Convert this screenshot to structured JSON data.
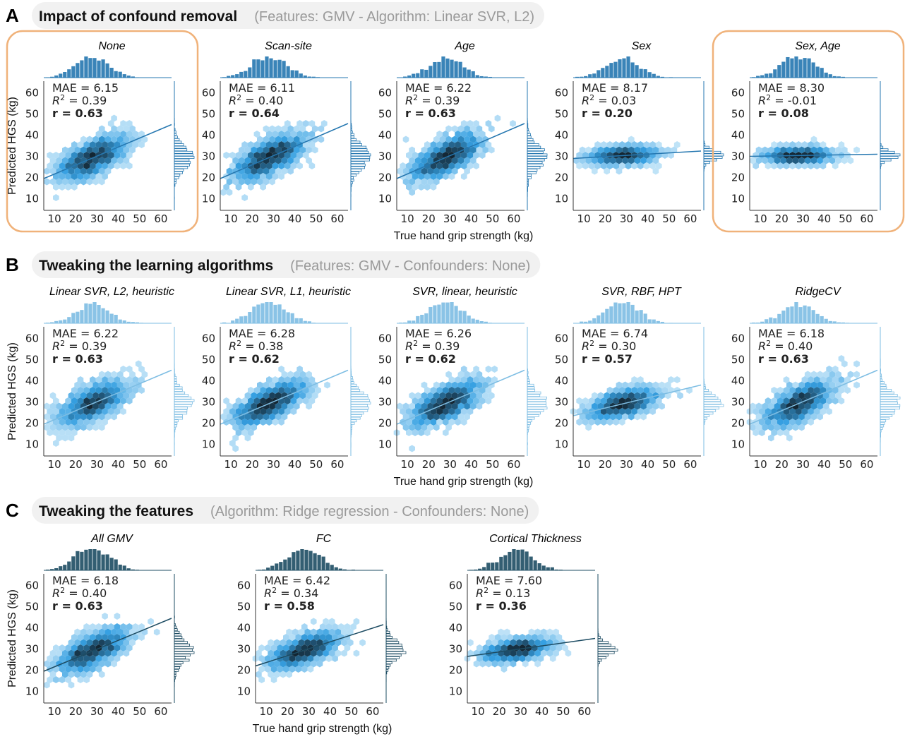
{
  "axes": {
    "xlim": [
      5,
      65
    ],
    "ylim": [
      4.5,
      65.5
    ],
    "xticks": [
      10,
      20,
      30,
      40,
      50,
      60
    ],
    "yticks": [
      10,
      20,
      30,
      40,
      50,
      60
    ],
    "fit_x": [
      5,
      65
    ]
  },
  "sections": [
    {
      "letter": "A",
      "title": "Impact of confound removal",
      "subtitle": "(Features: GMV - Algorithm: Linear SVR, L2)",
      "x_label": "True hand grip strength (kg)",
      "y_label": "Predicted HGS (kg)",
      "color": "#2577b0",
      "panels": [
        {
          "title": "None",
          "mae": "MAE = 6.15",
          "r2": {
            "symbol": "R",
            "power": "2",
            "text": " = 0.39"
          },
          "r": "r = 0.63",
          "fit_y": [
            19.5,
            45
          ],
          "highlight": true
        },
        {
          "title": "Scan-site",
          "mae": "MAE = 6.11",
          "r2": {
            "symbol": "R",
            "power": "2",
            "text": " = 0.40"
          },
          "r": "r = 0.64",
          "fit_y": [
            19.5,
            45.5
          ],
          "highlight": false
        },
        {
          "title": "Age",
          "mae": "MAE = 6.22",
          "r2": {
            "symbol": "R",
            "power": "2",
            "text": " = 0.39"
          },
          "r": "r = 0.63",
          "fit_y": [
            19.5,
            45.5
          ],
          "highlight": false
        },
        {
          "title": "Sex",
          "mae": "MAE = 8.17",
          "r2": {
            "symbol": "R",
            "power": "2",
            "text": " = 0.03"
          },
          "r": "r = 0.20",
          "fit_y": [
            29,
            32.5
          ],
          "highlight": false
        },
        {
          "title": "Sex, Age",
          "mae": "MAE = 8.30",
          "r2": {
            "symbol": "R",
            "power": "2",
            "text": " = -0.01"
          },
          "r": "r = 0.08",
          "fit_y": [
            30,
            31
          ],
          "highlight": true
        }
      ]
    },
    {
      "letter": "B",
      "title": "Tweaking the learning algorithms",
      "subtitle": "(Features: GMV - Confounders: None)",
      "x_label": "True hand grip strength (kg)",
      "y_label": "Predicted HGS (kg)",
      "color": "#7dbde3",
      "panels": [
        {
          "title": "Linear SVR, L2, heuristic",
          "mae": "MAE = 6.22",
          "r2": {
            "symbol": "R",
            "power": "2",
            "text": " = 0.39"
          },
          "r": "r = 0.63",
          "fit_y": [
            19.5,
            45
          ],
          "highlight": false
        },
        {
          "title": "Linear SVR, L1, heuristic",
          "mae": "MAE = 6.28",
          "r2": {
            "symbol": "R",
            "power": "2",
            "text": " = 0.38"
          },
          "r": "r = 0.62",
          "fit_y": [
            19.5,
            45
          ],
          "highlight": false
        },
        {
          "title": "SVR, linear, heuristic",
          "mae": "MAE = 6.26",
          "r2": {
            "symbol": "R",
            "power": "2",
            "text": " = 0.39"
          },
          "r": "r = 0.62",
          "fit_y": [
            19.5,
            45
          ],
          "highlight": false
        },
        {
          "title": "SVR, RBF, HPT",
          "mae": "MAE = 6.74",
          "r2": {
            "symbol": "R",
            "power": "2",
            "text": " = 0.30"
          },
          "r": "r = 0.57",
          "fit_y": [
            23.5,
            38
          ],
          "highlight": false
        },
        {
          "title": "RidgeCV",
          "mae": "MAE = 6.18",
          "r2": {
            "symbol": "R",
            "power": "2",
            "text": " = 0.40"
          },
          "r": "r = 0.63",
          "fit_y": [
            19.5,
            45
          ],
          "highlight": false
        }
      ]
    },
    {
      "letter": "C",
      "title": "Tweaking the features",
      "subtitle": "(Algorithm: Ridge regression - Confounders: None)",
      "x_label": "True hand grip strength (kg)",
      "y_label": "Predicted HGS (kg)",
      "color": "#1d4c63",
      "panels": [
        {
          "title": "All GMV",
          "mae": "MAE = 6.18",
          "r2": {
            "symbol": "R",
            "power": "2",
            "text": " = 0.40"
          },
          "r": "r = 0.63",
          "fit_y": [
            19.5,
            44.5
          ],
          "highlight": false
        },
        {
          "title": "FC",
          "mae": "MAE = 6.42",
          "r2": {
            "symbol": "R",
            "power": "2",
            "text": " = 0.34"
          },
          "r": "r = 0.58",
          "fit_y": [
            22,
            41.5
          ],
          "highlight": false
        },
        {
          "title": "Cortical Thickness",
          "mae": "MAE = 7.60",
          "r2": {
            "symbol": "R",
            "power": "2",
            "text": " = 0.13"
          },
          "r": "r = 0.36",
          "fit_y": [
            26.5,
            35
          ],
          "highlight": false
        }
      ]
    }
  ]
}
